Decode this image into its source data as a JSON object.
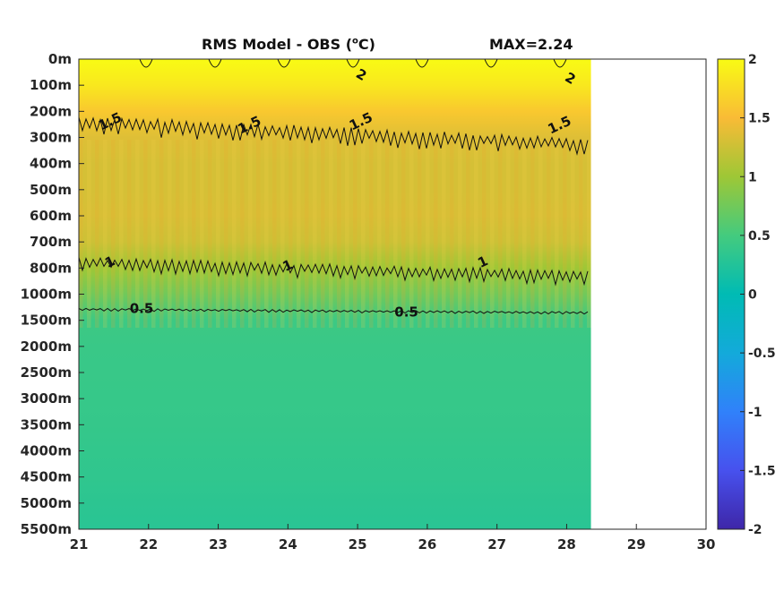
{
  "chart_data": {
    "type": "heatmap",
    "title_prefix": "RMS Model - OBS (",
    "title_unit_sup": "o",
    "title_suffix": "C)",
    "max_label": "MAX=2.24",
    "xlabel": "",
    "ylabel": "",
    "x_ticks": [
      "21",
      "22",
      "23",
      "24",
      "25",
      "26",
      "27",
      "28",
      "29",
      "30"
    ],
    "xlim": [
      21,
      30
    ],
    "data_x_end": 28.35,
    "y_ticks": [
      "0m",
      "100m",
      "200m",
      "300m",
      "400m",
      "500m",
      "600m",
      "700m",
      "800m",
      "1000m",
      "1500m",
      "2000m",
      "2500m",
      "3000m",
      "3500m",
      "4000m",
      "4500m",
      "5000m",
      "5500m"
    ],
    "colorbar": {
      "range": [
        -2,
        2
      ],
      "ticks": [
        "2",
        "1.5",
        "1",
        "0.5",
        "0",
        "-0.5",
        "-1",
        "-1.5",
        "-2"
      ],
      "colormap": "parula"
    },
    "depth_profile": [
      {
        "depth": "0m",
        "value": 2.05
      },
      {
        "depth": "100m",
        "value": 1.85
      },
      {
        "depth": "200m",
        "value": 1.6
      },
      {
        "depth": "300m",
        "value": 1.35
      },
      {
        "depth": "400m",
        "value": 1.3
      },
      {
        "depth": "500m",
        "value": 1.3
      },
      {
        "depth": "600m",
        "value": 1.32
      },
      {
        "depth": "700m",
        "value": 1.25
      },
      {
        "depth": "800m",
        "value": 1.0
      },
      {
        "depth": "1000m",
        "value": 0.75
      },
      {
        "depth": "1500m",
        "value": 0.45
      },
      {
        "depth": "2000m",
        "value": 0.42
      },
      {
        "depth": "2500m",
        "value": 0.41
      },
      {
        "depth": "3000m",
        "value": 0.4
      },
      {
        "depth": "3500m",
        "value": 0.39
      },
      {
        "depth": "4000m",
        "value": 0.37
      },
      {
        "depth": "4500m",
        "value": 0.35
      },
      {
        "depth": "5000m",
        "value": 0.32
      },
      {
        "depth": "5500m",
        "value": 0.3
      }
    ],
    "contours": [
      {
        "level": "2",
        "labels_x": [
          25.05,
          28.05
        ]
      },
      {
        "level": "1.5",
        "labels_x": [
          21.45,
          23.45,
          25.05,
          27.9
        ]
      },
      {
        "level": "1",
        "labels_x": [
          21.45,
          24.0,
          26.8
        ]
      },
      {
        "level": "0.5",
        "labels_x": [
          21.9,
          25.7
        ]
      }
    ]
  }
}
